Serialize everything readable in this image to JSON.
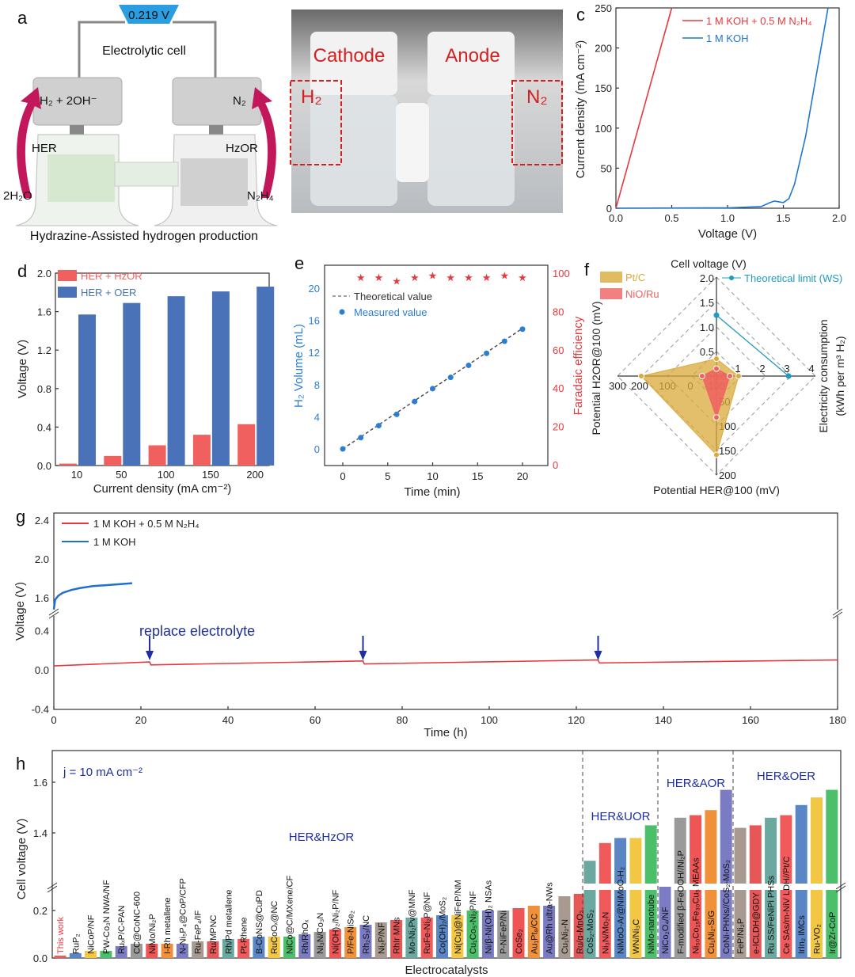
{
  "panel_labels": [
    "a",
    "b",
    "c",
    "d",
    "e",
    "f",
    "g",
    "h"
  ],
  "panel_a": {
    "meter": "0.219 V",
    "title": "Electrolytic cell",
    "left_top": "H₂ + 2OH⁻",
    "right_top": "N₂",
    "left_mid": "HER",
    "right_mid": "HzOR",
    "left_bottom": "2H₂O",
    "right_bottom": "N₂H₄",
    "caption": "Hydrazine-Assisted hydrogen production"
  },
  "panel_b": {
    "cathode": "Cathode",
    "anode": "Anode",
    "left_gas": "H₂",
    "right_gas": "N₂"
  },
  "chart_data": [
    {
      "id": "c",
      "type": "line",
      "xlabel": "Voltage (V)",
      "ylabel": "Current density (mA cm⁻²)",
      "xlim": [
        0,
        2.0
      ],
      "ylim": [
        0,
        250
      ],
      "xticks": [
        "0.0",
        "0.5",
        "1.0",
        "1.5",
        "2.0"
      ],
      "yticks": [
        "0",
        "50",
        "100",
        "150",
        "200",
        "250"
      ],
      "legend": "top-right",
      "series": [
        {
          "name": "1 M KOH + 0.5 M N₂H₄",
          "color": "#e8383d",
          "x": [
            0,
            0.5
          ],
          "y": [
            0,
            250
          ]
        },
        {
          "name": "1 M KOH",
          "color": "#1f77d0",
          "x": [
            0,
            1.0,
            1.3,
            1.38,
            1.42,
            1.46,
            1.5,
            1.55,
            1.6,
            1.7,
            1.8,
            1.9
          ],
          "y": [
            0,
            0.5,
            2,
            7,
            9,
            8,
            7,
            12,
            30,
            90,
            170,
            250
          ]
        }
      ]
    },
    {
      "id": "d",
      "type": "bar",
      "xlabel": "Current density (mA cm⁻²)",
      "ylabel": "Voltage (V)",
      "categories": [
        "10",
        "50",
        "100",
        "150",
        "200"
      ],
      "ylim": [
        0,
        2.0
      ],
      "yticks": [
        "0.0",
        "0.4",
        "0.8",
        "1.2",
        "1.6",
        "2.0"
      ],
      "legend": "top-left",
      "series": [
        {
          "name": "HER + HzOR",
          "color": "#f0605f",
          "values": [
            0.02,
            0.1,
            0.21,
            0.32,
            0.43
          ]
        },
        {
          "name": "HER + OER",
          "color": "#4a72b8",
          "values": [
            1.57,
            1.69,
            1.76,
            1.81,
            1.86
          ]
        }
      ]
    },
    {
      "id": "e",
      "type": "scatter",
      "xlabel": "Time (min)",
      "ylabel": "H₂ Volume (mL)",
      "y2label": "Faradaic efficiency",
      "xlim": [
        0,
        20
      ],
      "ylim": [
        -1,
        21
      ],
      "y2lim": [
        0,
        100
      ],
      "xticks": [
        "0",
        "5",
        "10",
        "15",
        "20"
      ],
      "yticks": [
        "0",
        "4",
        "8",
        "12",
        "16",
        "20"
      ],
      "y2ticks": [
        "0",
        "20",
        "40",
        "60",
        "80",
        "100"
      ],
      "series": [
        {
          "name": "Theoretical value",
          "color": "#444",
          "x": [
            0,
            20
          ],
          "y": [
            0,
            15
          ]
        },
        {
          "name": "Measured value",
          "color": "#2a7fd4",
          "x": [
            0,
            2,
            4,
            6,
            8,
            10,
            12,
            14,
            16,
            18,
            20
          ],
          "y": [
            0,
            1.4,
            2.9,
            4.3,
            5.9,
            7.5,
            8.9,
            10.4,
            11.9,
            13.4,
            14.9
          ]
        },
        {
          "name": "Faradaic efficiency",
          "color": "#e8383d",
          "axis": "right",
          "x": [
            2,
            4,
            6,
            8,
            10,
            12,
            14,
            16,
            18,
            20
          ],
          "y": [
            98,
            98,
            96,
            98,
            99,
            98,
            98,
            98,
            99,
            98
          ]
        }
      ]
    },
    {
      "id": "f",
      "type": "radar",
      "axes": [
        {
          "name": "Cell voltage (V)",
          "ticks": [
            "0.5",
            "1.0",
            "1.5",
            "2.0"
          ]
        },
        {
          "name": "Electricity consumption",
          "name2": "(kWh per m³ H₂)",
          "ticks": [
            "1",
            "2",
            "3",
            "4"
          ]
        },
        {
          "name": "Potential HER@100 (mV)",
          "ticks": [
            "50",
            "100",
            "150",
            "200"
          ]
        },
        {
          "name": "Potential H2OR@100 (mV)",
          "ticks": [
            "300",
            "200",
            "100",
            "0",
            "-100"
          ]
        }
      ],
      "center_labels": [
        "0.0",
        "0.0"
      ],
      "series": [
        {
          "name": "Pt/C",
          "color": "#d9aa3a",
          "values": [
            0.35,
            0.9,
            158,
            200
          ]
        },
        {
          "name": "NiO/Ru",
          "color": "#f06060",
          "values": [
            0.15,
            0.55,
            83,
            -48
          ]
        },
        {
          "name": "Theoretical limit (WS)",
          "color": "#1f9bbf",
          "values": [
            1.23,
            2.94
          ]
        }
      ]
    },
    {
      "id": "g",
      "type": "line",
      "xlabel": "Time (h)",
      "ylabel": "Voltage (V)",
      "xlim": [
        0,
        180
      ],
      "xticks": [
        "0",
        "20",
        "40",
        "60",
        "80",
        "100",
        "120",
        "140",
        "160",
        "180"
      ],
      "yticks_lower": [
        "-0.4",
        "0.0",
        "0.4"
      ],
      "yticks_upper": [
        "1.6",
        "2.0",
        "2.4"
      ],
      "annotation": "replace electrolyte",
      "arrows_at": [
        22,
        71,
        125
      ],
      "series": [
        {
          "name": "1 M KOH + 0.5 M N₂H₄",
          "color": "#e8383d",
          "x": [
            0,
            22,
            22.3,
            71,
            71.3,
            125,
            125.3,
            180
          ],
          "y": [
            0.04,
            0.08,
            0.05,
            0.09,
            0.06,
            0.1,
            0.07,
            0.1
          ]
        },
        {
          "name": "1 M KOH",
          "color": "#1f6fd0",
          "x": [
            0,
            0.3,
            1,
            2,
            4,
            6,
            9,
            12,
            15,
            18
          ],
          "y": [
            1.48,
            1.58,
            1.62,
            1.65,
            1.68,
            1.7,
            1.72,
            1.73,
            1.74,
            1.75
          ]
        }
      ]
    },
    {
      "id": "h",
      "type": "bar",
      "xlabel": "Electrocatalysts",
      "ylabel": "Cell voltage (V)",
      "annotation": "j = 10 mA cm⁻²",
      "yticks_lower": [
        "0.0",
        "0.2"
      ],
      "yticks_upper": [
        "1.4",
        "1.6"
      ],
      "palette": [
        "#f05a5a",
        "#5b86c5",
        "#f2c744",
        "#4cbf6b",
        "#7b7bc4",
        "#9a9a9a",
        "#ef5555",
        "#f0913a",
        "#7b7bc4",
        "#a89a90",
        "#e65757",
        "#6aa8a0"
      ],
      "groups": [
        {
          "name": "HER&HzOR",
          "categories": [
            "This work",
            "RuP₂",
            "NiCoP/NF",
            "PW-Co₃N NWA/NF",
            "RuₓP/C-PAN",
            "CC@CoNC-600",
            "NiMo/Ni₂P",
            "I-Rh metallene",
            "N-Ni₅P₄@CoP/CFP",
            "Ru-FeP₄/IF",
            "Ru/MPNC",
            "Rh/Pd metallene",
            "Pt-Rhene",
            "B-CoNS@CuPD",
            "RuCoOₓ@NC",
            "NiCo@C/MXene/CF",
            "Rh/RhOₓ",
            "Ni₃N/Co₃N",
            "Ni(OH)₂/Ni₂P/NF",
            "P/Fe-NiSe₂",
            "Rh₂S₃/NC",
            "Ni₂P/NF",
            "RhIr MNs",
            "Mo-Ni₂Pv@MNF",
            "RuFe-Ni₂P@NF",
            "Co(OH)₂/MoS₂",
            "Ni(Cu)@NiFeP/NM",
            "Cu₁Co₅-Ni₂P/NF",
            "Ni/β-Ni(OH)₂ NSAs",
            "P-NiFeP/Ni",
            "CoSe₂",
            "Au₁Pt₈/CC",
            "Au@Rh ultra-NWs",
            "Cu₁Ni₂-N",
            "Ru/α-MnO₂"
          ],
          "values": [
            0.01,
            0.02,
            0.03,
            0.03,
            0.05,
            0.06,
            0.06,
            0.06,
            0.06,
            0.07,
            0.07,
            0.08,
            0.08,
            0.09,
            0.09,
            0.09,
            0.1,
            0.11,
            0.12,
            0.13,
            0.14,
            0.15,
            0.16,
            0.17,
            0.17,
            0.18,
            0.18,
            0.2,
            0.2,
            0.2,
            0.21,
            0.22,
            0.22,
            0.26,
            0.27
          ]
        },
        {
          "name": "HER&UOR",
          "categories": [
            "CoS₂-MoS₂",
            "Ni₃N/Mo₂N",
            "NiMoO-Ar@NiMoO-H₂",
            "WN/Ni₃C",
            "NiMo-nanotube"
          ],
          "values": [
            1.29,
            1.36,
            1.38,
            1.38,
            1.43
          ]
        },
        {
          "name": "HER&AOR",
          "categories": [
            "NiCo₂O₄/NF",
            "F-modified β-FeOOH//Ni₂P",
            "Ni₅₀Co₁₅Fe₃₀Cu₅ MEAAs",
            "Cu₁Ni₂-S/G",
            "CoNi-PHNs//CoS₂-MoS₂"
          ],
          "values": [
            0.3,
            1.46,
            1.47,
            1.49,
            1.57
          ]
        },
        {
          "name": "HER&OER",
          "categories": [
            "FeP/Ni₂P",
            "e-ICLDH@GDY",
            "Ru SS/FeNiPi PHSs",
            "Ce SAs/m-NiV LDH//Pt/C",
            "IrIn₂ IMCs",
            "Ru-VO₂",
            "Ir@Zr-CoP"
          ],
          "values": [
            1.42,
            1.43,
            1.46,
            1.47,
            1.51,
            1.54,
            1.57
          ]
        }
      ]
    }
  ]
}
